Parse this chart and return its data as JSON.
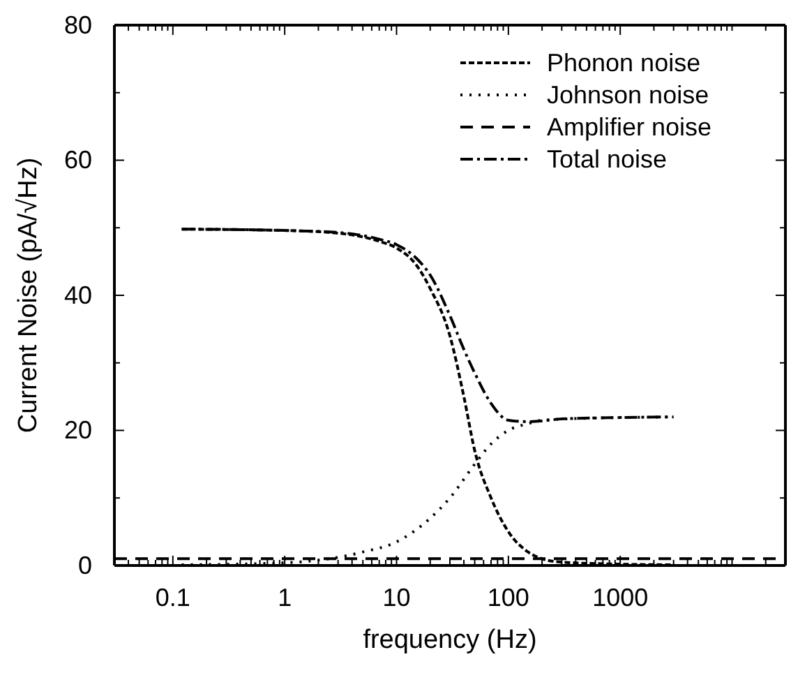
{
  "chart_data": {
    "type": "line",
    "xlabel": "frequency (Hz)",
    "ylabel": "Current Noise  (pA/√Hz)",
    "log": "x",
    "legend": "top right",
    "grid": false,
    "xlim": [
      0.03,
      30000
    ],
    "ylim": [
      0,
      80
    ],
    "xticks": [
      {
        "value": 0.04,
        "label": null
      },
      {
        "value": 0.05,
        "label": null
      },
      {
        "value": 0.06,
        "label": null
      },
      {
        "value": 0.07,
        "label": null
      },
      {
        "value": 0.08,
        "label": null
      },
      {
        "value": 0.09,
        "label": null
      },
      0.1,
      {
        "value": 0.2,
        "label": null
      },
      {
        "value": 0.3,
        "label": null
      },
      {
        "value": 0.4,
        "label": null
      },
      {
        "value": 0.5,
        "label": null
      },
      {
        "value": 0.6,
        "label": null
      },
      {
        "value": 0.7,
        "label": null
      },
      {
        "value": 0.8,
        "label": null
      },
      {
        "value": 0.9,
        "label": null
      },
      1,
      {
        "value": 2,
        "label": null
      },
      {
        "value": 3,
        "label": null
      },
      {
        "value": 4,
        "label": null
      },
      {
        "value": 5,
        "label": null
      },
      {
        "value": 6,
        "label": null
      },
      {
        "value": 7,
        "label": null
      },
      {
        "value": 8,
        "label": null
      },
      {
        "value": 9,
        "label": null
      },
      10,
      {
        "value": 20,
        "label": null
      },
      {
        "value": 30,
        "label": null
      },
      {
        "value": 40,
        "label": null
      },
      {
        "value": 50,
        "label": null
      },
      {
        "value": 60,
        "label": null
      },
      {
        "value": 70,
        "label": null
      },
      {
        "value": 80,
        "label": null
      },
      {
        "value": 90,
        "label": null
      },
      100,
      {
        "value": 200,
        "label": null
      },
      {
        "value": 300,
        "label": null
      },
      {
        "value": 400,
        "label": null
      },
      {
        "value": 500,
        "label": null
      },
      {
        "value": 600,
        "label": null
      },
      {
        "value": 700,
        "label": null
      },
      {
        "value": 800,
        "label": null
      },
      {
        "value": 900,
        "label": null
      },
      1000,
      {
        "value": 2000,
        "label": null
      },
      {
        "value": 3000,
        "label": null
      },
      {
        "value": 4000,
        "label": null
      },
      {
        "value": 5000,
        "label": null
      },
      {
        "value": 6000,
        "label": null
      },
      {
        "value": 7000,
        "label": null
      },
      {
        "value": 8000,
        "label": null
      },
      {
        "value": 9000,
        "label": null
      },
      {
        "value": 10000,
        "label": null
      },
      {
        "value": 20000,
        "label": null
      }
    ],
    "yticks": [
      0,
      {
        "value": 10,
        "label": null
      },
      20,
      {
        "value": 30,
        "label": null
      },
      40,
      {
        "value": 50,
        "label": null
      },
      60,
      {
        "value": 70,
        "label": null
      },
      80
    ],
    "series": [
      {
        "name": "Phonon noise",
        "color": "#000000",
        "line_style": "dashed",
        "x": [
          0.12,
          1,
          3,
          7,
          10,
          15,
          20,
          30,
          40,
          50,
          70,
          100,
          150,
          200,
          300,
          1000,
          3000
        ],
        "values": [
          49.8,
          49.6,
          49.2,
          48,
          47,
          44.5,
          41,
          34,
          25,
          17,
          10,
          5,
          2,
          1,
          0.5,
          0.2,
          0.1
        ]
      },
      {
        "name": "Johnson noise",
        "color": "#000000",
        "line_style": "dotted",
        "x": [
          0.12,
          1,
          2,
          3,
          5,
          10,
          20,
          30,
          50,
          70,
          100,
          150,
          200,
          500,
          1000,
          3000
        ],
        "values": [
          0.1,
          0.4,
          0.8,
          1.2,
          2,
          3.5,
          7,
          10,
          15,
          18,
          20,
          21,
          21.5,
          21.8,
          21.9,
          22
        ]
      },
      {
        "name": "Amplifier noise",
        "color": "#000000",
        "line_style": "longdash",
        "x": [
          0.03,
          30000
        ],
        "values": [
          1,
          1
        ]
      },
      {
        "name": "Total noise",
        "color": "#000000",
        "line_style": "dashdot",
        "x": [
          0.12,
          1,
          3,
          7,
          10,
          15,
          20,
          30,
          40,
          50,
          70,
          100,
          150,
          200,
          300,
          1000,
          3000
        ],
        "values": [
          49.8,
          49.6,
          49.3,
          48.3,
          47.5,
          45.5,
          43,
          37,
          32,
          28.5,
          24,
          21.5,
          21.3,
          21.4,
          21.7,
          21.9,
          22
        ]
      }
    ]
  }
}
